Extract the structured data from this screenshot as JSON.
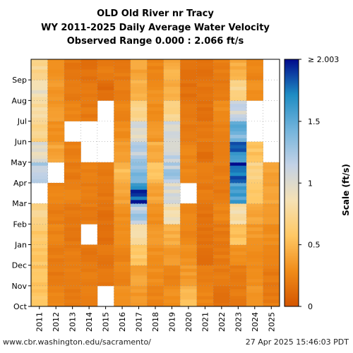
{
  "title_lines": [
    "OLD Old River nr Tracy",
    "WY 2011-2025 Daily Average Water Velocity",
    "Observed Range 0.000 : 2.066 ft/s"
  ],
  "footer": {
    "url": "www.cbr.washington.edu/sacramento/",
    "timestamp": "27 Apr 2025 15:46:03 PDT"
  },
  "chart_data": {
    "type": "heatmap",
    "title": "OLD Old River nr Tracy",
    "x_categories": [
      "2011",
      "2012",
      "2013",
      "2014",
      "2015",
      "2016",
      "2017",
      "2018",
      "2019",
      "2020",
      "2021",
      "2022",
      "2023",
      "2024",
      "2025"
    ],
    "y_categories": [
      "Oct",
      "Nov",
      "Dec",
      "Jan",
      "Feb",
      "Mar",
      "Apr",
      "May",
      "Jun",
      "Jul",
      "Aug",
      "Sep"
    ],
    "xlabel": "",
    "ylabel": "",
    "colorbar": {
      "label": "Scale (ft/s)",
      "range": [
        0,
        2.003
      ],
      "ticks": [
        "0",
        "0.5",
        "1",
        "1.5",
        "≥ 2.003"
      ],
      "tick_values": [
        0,
        0.5,
        1,
        1.5,
        2.003
      ],
      "colors": [
        "#d45500",
        "#f08c19",
        "#ffc864",
        "#f5e1b4",
        "#c3d2e6",
        "#73b4dc",
        "#1e8cc3",
        "#000a8c"
      ]
    },
    "grid": true,
    "values_ft_s_monthly": {
      "2011": [
        0.55,
        0.55,
        0.58,
        0.6,
        0.7,
        null,
        1.2,
        0.95,
        0.7,
        0.8,
        0.88,
        0.75
      ],
      "2012": [
        0.25,
        0.2,
        0.2,
        0.25,
        0.2,
        0.25,
        null,
        0.4,
        0.3,
        0.35,
        0.35,
        0.3
      ],
      "2013": [
        0.2,
        0.22,
        0.2,
        0.18,
        0.2,
        0.25,
        0.2,
        0.22,
        null,
        0.25,
        0.2,
        0.18
      ],
      "2014": [
        0.22,
        0.2,
        0.18,
        null,
        0.2,
        0.2,
        0.22,
        null,
        null,
        0.2,
        0.18,
        0.15
      ],
      "2015": [
        null,
        0.18,
        0.18,
        0.15,
        0.15,
        0.18,
        0.2,
        null,
        null,
        null,
        0.12,
        0.2
      ],
      "2016": [
        0.3,
        0.25,
        0.25,
        0.28,
        0.3,
        0.4,
        0.5,
        0.35,
        0.3,
        0.25,
        0.22,
        0.2
      ],
      "2017": [
        0.35,
        0.4,
        0.6,
        0.85,
        1.2,
        1.8,
        1.4,
        1.2,
        1.0,
        0.7,
        0.45,
        0.4
      ],
      "2018": [
        0.25,
        0.3,
        0.3,
        0.35,
        0.3,
        0.4,
        0.55,
        0.45,
        0.35,
        0.3,
        0.3,
        0.25
      ],
      "2019": [
        0.3,
        0.25,
        0.35,
        0.45,
        0.85,
        1.0,
        1.2,
        1.1,
        1.05,
        0.7,
        0.45,
        0.45
      ],
      "2020": [
        0.5,
        0.35,
        0.3,
        0.25,
        0.25,
        null,
        0.25,
        0.25,
        0.2,
        0.2,
        0.15,
        0.15
      ],
      "2021": [
        0.25,
        0.2,
        0.15,
        0.15,
        0.15,
        0.2,
        0.2,
        0.15,
        0.2,
        0.15,
        0.18,
        0.15
      ],
      "2022": [
        0.15,
        0.2,
        0.2,
        0.2,
        0.25,
        0.2,
        0.22,
        0.2,
        0.25,
        0.3,
        0.2,
        0.22
      ],
      "2023": [
        0.2,
        0.2,
        0.3,
        0.55,
        0.8,
        1.6,
        1.9,
        1.7,
        1.4,
        1.1,
        0.7,
        0.45
      ],
      "2024": [
        0.35,
        0.3,
        0.3,
        0.35,
        0.4,
        0.55,
        0.7,
        0.55,
        null,
        null,
        0.3,
        0.25
      ],
      "2025": [
        0.2,
        0.2,
        0.25,
        0.3,
        0.35,
        0.4,
        0.4,
        null,
        null,
        null,
        null,
        null
      ]
    }
  }
}
